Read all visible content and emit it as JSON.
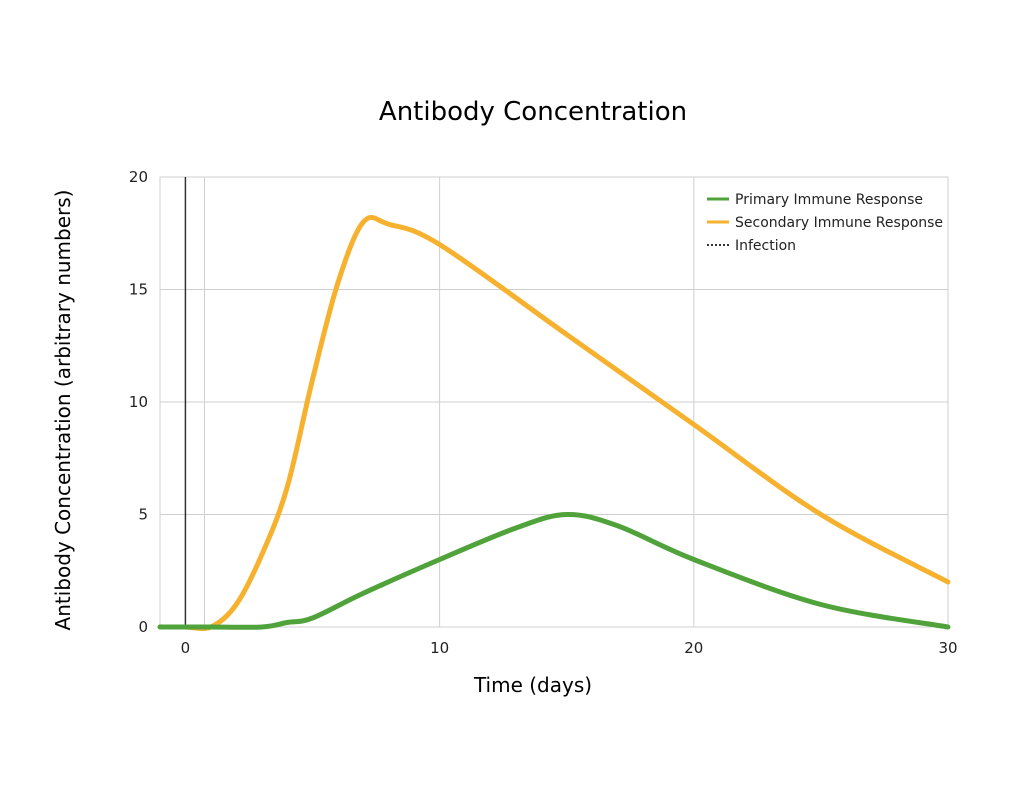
{
  "chart_data": {
    "type": "line",
    "title": "Antibody Concentration",
    "xlabel": "Time (days)",
    "ylabel": "Antibody Concentration (arbitrary numbers)",
    "xlim": [
      -1,
      30
    ],
    "ylim": [
      0,
      20
    ],
    "xticks": [
      "0",
      "10",
      "20",
      "30"
    ],
    "yticks": [
      "0",
      "5",
      "10",
      "15",
      "20"
    ],
    "xtick_values": [
      0,
      10,
      20,
      30
    ],
    "ytick_values": [
      0,
      5,
      10,
      15,
      20
    ],
    "grid": true,
    "legend_position": "top-right",
    "series": [
      {
        "name": "Primary Immune Response",
        "color": "#4fa33a",
        "x": [
          -1,
          0,
          1,
          3,
          4,
          5,
          7,
          10,
          13,
          15,
          17,
          20,
          25,
          30
        ],
        "y": [
          0,
          0,
          0,
          0,
          0.2,
          0.4,
          1.5,
          3.0,
          4.4,
          5.0,
          4.5,
          3.0,
          1.0,
          0
        ]
      },
      {
        "name": "Secondary Immune Response",
        "color": "#f6b12f",
        "x": [
          -1,
          0,
          1,
          2,
          3,
          4,
          5,
          6,
          7,
          8,
          10,
          15,
          20,
          25,
          30
        ],
        "y": [
          0,
          0,
          0,
          1.0,
          3.2,
          6.2,
          11.0,
          15.3,
          18.0,
          17.9,
          17.0,
          13.0,
          9.0,
          5.0,
          2.0
        ]
      },
      {
        "name": "Infection",
        "color": "#000000",
        "style": "dotted",
        "x": [
          0,
          0
        ],
        "y": [
          0,
          20
        ]
      }
    ]
  }
}
